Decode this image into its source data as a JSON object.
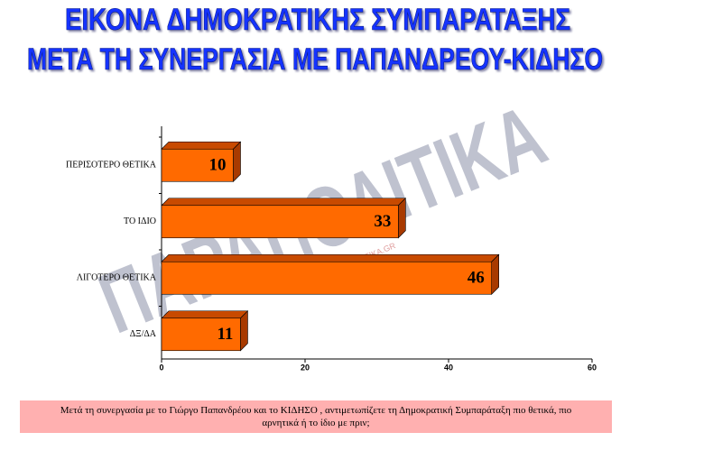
{
  "chart_data": {
    "type": "bar",
    "orientation": "horizontal",
    "title": [
      "ΕΙΚΟΝΑ ΔΗΜΟΚΡΑΤΙΚΗΣ ΣΥΜΠΑΡΑΤΑΞΗΣ",
      "ΜΕΤΑ ΤΗ ΣΥΝΕΡΓΑΣΙΑ ΜΕ ΠΑΠΑΝΔΡΕΟΥ-ΚΙΔΗΣΟ"
    ],
    "categories": [
      "ΠΕΡΙΣΟΤΕΡΟ ΘΕΤΙΚΑ",
      "ΤΟ ΙΔΙΟ",
      "ΛΙΓΟΤΕΡΟ ΘΕΤΙΚΑ",
      "ΔΞ/ΔΑ"
    ],
    "values": [
      10,
      33,
      46,
      11
    ],
    "color": "#ff6a00",
    "xlim": [
      0,
      60
    ],
    "xticks": [
      0,
      20,
      40,
      60
    ],
    "watermark": [
      "ΠΑΡΑΠΟΛΙΤΙΚΑ",
      "WWW.PARAPOLITIKA.GR"
    ],
    "note": "Μετά τη συνεργασία με το Γιώργο Παπανδρέου και το ΚΙΔΗΣΟ , αντιμετωπίζετε τη Δημοκρατική Συμπαράταξη πιο θετικά, πιο αρνητικά ή το ίδιο με πριν;"
  }
}
